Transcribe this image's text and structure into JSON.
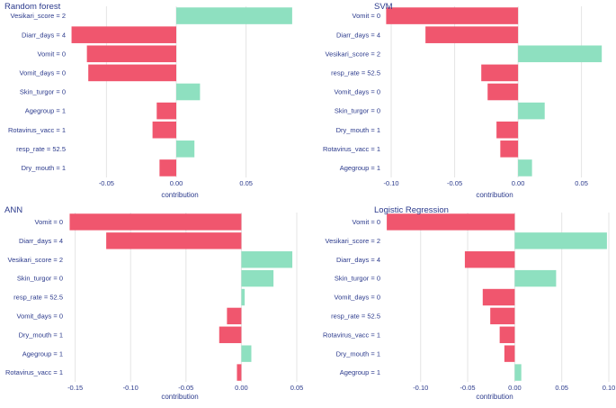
{
  "colors": {
    "negative": "#f0566e",
    "positive": "#8ee0c0",
    "grid": "#e4e4e4",
    "text": "#2b3a8c",
    "tick": "#2b3a8c"
  },
  "chart_data": [
    {
      "type": "bar",
      "orientation": "horizontal",
      "title": "Random forest",
      "xlabel": "contribution",
      "categories": [
        "Vesikari_score = 2",
        "Diarr_days = 4",
        "Vomit = 0",
        "Vomit_days = 0",
        "Skin_turgor = 0",
        "Agegroup = 1",
        "Rotavirus_vacc = 1",
        "resp_rate = 52.5",
        "Dry_mouth = 1"
      ],
      "values": [
        0.083,
        -0.075,
        -0.064,
        -0.063,
        0.017,
        -0.014,
        -0.017,
        0.013,
        -0.012
      ],
      "xlim": [
        -0.076,
        0.085
      ],
      "xticks": [
        -0.05,
        0.0,
        0.05
      ],
      "xtick_labels": [
        "-0.05",
        "0.00",
        "0.05"
      ]
    },
    {
      "type": "bar",
      "orientation": "horizontal",
      "title": "SVM",
      "xlabel": "contribution",
      "categories": [
        "Vomit = 0",
        "Diarr_days = 4",
        "Vesikari_score = 2",
        "resp_rate = 52.5",
        "Vomit_days = 0",
        "Skin_turgor = 0",
        "Dry_mouth = 1",
        "Rotavirus_vacc = 1",
        "Agegroup = 1"
      ],
      "values": [
        -0.104,
        -0.073,
        0.066,
        -0.029,
        -0.024,
        0.021,
        -0.017,
        -0.014,
        0.011
      ],
      "xlim": [
        -0.105,
        0.068
      ],
      "xticks": [
        -0.1,
        -0.05,
        0.0,
        0.05
      ],
      "xtick_labels": [
        "-0.10",
        "-0.05",
        "0.00",
        "0.05"
      ]
    },
    {
      "type": "bar",
      "orientation": "horizontal",
      "title": "ANN",
      "xlabel": "contribution",
      "categories": [
        "Vomit = 0",
        "Diarr_days = 4",
        "Vesikari_score = 2",
        "Skin_turgor = 0",
        "resp_rate = 52.5",
        "Vomit_days = 0",
        "Dry_mouth = 1",
        "Agegroup = 1",
        "Rotavirus_vacc = 1"
      ],
      "values": [
        -0.155,
        -0.122,
        0.046,
        0.029,
        0.003,
        -0.013,
        -0.02,
        0.009,
        -0.004
      ],
      "xlim": [
        -0.157,
        0.05
      ],
      "xticks": [
        -0.15,
        -0.1,
        -0.05,
        0.0,
        0.05
      ],
      "xtick_labels": [
        "-0.15",
        "-0.10",
        "-0.05",
        "0.00",
        "0.05"
      ]
    },
    {
      "type": "bar",
      "orientation": "horizontal",
      "title": "Logistic Regression",
      "xlabel": "contribution",
      "categories": [
        "Vomit = 0",
        "Vesikari_score = 2",
        "Diarr_days = 4",
        "Skin_turgor = 0",
        "Vomit_days = 0",
        "resp_rate = 52.5",
        "Rotavirus_vacc = 1",
        "Dry_mouth = 1",
        "Agegroup = 1"
      ],
      "values": [
        -0.136,
        0.098,
        -0.053,
        0.044,
        -0.034,
        -0.026,
        -0.016,
        -0.011,
        0.007
      ],
      "xlim": [
        -0.138,
        0.1
      ],
      "xticks": [
        -0.1,
        -0.05,
        0.0,
        0.05,
        0.1
      ],
      "xtick_labels": [
        "-0.10",
        "-0.05",
        "0.00",
        "0.05",
        "0.10"
      ]
    }
  ]
}
